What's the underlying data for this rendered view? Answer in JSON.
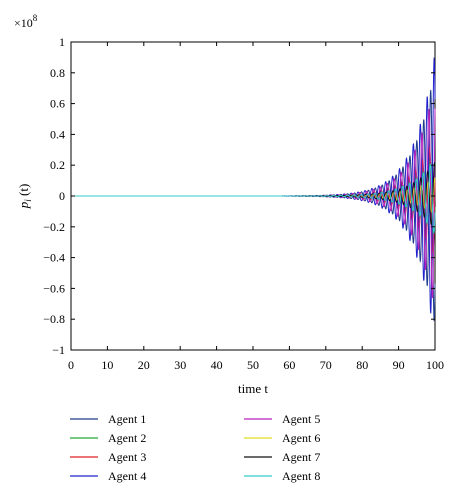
{
  "chart_data": {
    "type": "line",
    "title": "",
    "xlabel": "time t",
    "ylabel": "p_i (t)",
    "ylabel_base": "p",
    "ylabel_sub": "i",
    "ylabel_rest": " (t)",
    "y_scale_label": "×10",
    "y_scale_exp": "8",
    "y_scale": 100000000,
    "xlim": [
      0,
      100
    ],
    "ylim": [
      -1,
      1
    ],
    "xticks": [
      "0",
      "10",
      "20",
      "30",
      "40",
      "50",
      "60",
      "70",
      "80",
      "90",
      "100"
    ],
    "yticks": [
      "1",
      "0.8",
      "0.6",
      "0.4",
      "0.2",
      "0",
      "−0.2",
      "−0.4",
      "−0.6",
      "−0.8",
      "−1"
    ],
    "grid": false,
    "legend_position": "bottom",
    "series": [
      {
        "name": "Agent 1",
        "color": "#1f3c88",
        "amplitude_final": 0.84,
        "onset": 58,
        "growth_rate": 0.17,
        "phase": 0.0
      },
      {
        "name": "Agent 2",
        "color": "#22aa33",
        "amplitude_final": 0.3,
        "onset": 60,
        "growth_rate": 0.16,
        "phase": 0.5
      },
      {
        "name": "Agent 3",
        "color": "#dd2222",
        "amplitude_final": 0.4,
        "onset": 60,
        "growth_rate": 0.16,
        "phase": 1.0
      },
      {
        "name": "Agent 4",
        "color": "#2020cc",
        "amplitude_final": 0.93,
        "onset": 58,
        "growth_rate": 0.17,
        "phase": 3.14
      },
      {
        "name": "Agent 5",
        "color": "#bb22bb",
        "amplitude_final": 0.75,
        "onset": 58,
        "growth_rate": 0.17,
        "phase": 1.6
      },
      {
        "name": "Agent 6",
        "color": "#dddd22",
        "amplitude_final": 0.12,
        "onset": 62,
        "growth_rate": 0.15,
        "phase": 2.2
      },
      {
        "name": "Agent 7",
        "color": "#111111",
        "amplitude_final": 0.22,
        "onset": 60,
        "growth_rate": 0.16,
        "phase": 2.7
      },
      {
        "name": "Agent 8",
        "color": "#33cccc",
        "amplitude_final": 0.25,
        "onset": 60,
        "growth_rate": 0.16,
        "phase": 0.3
      }
    ],
    "oscillation_period": 1.9
  }
}
